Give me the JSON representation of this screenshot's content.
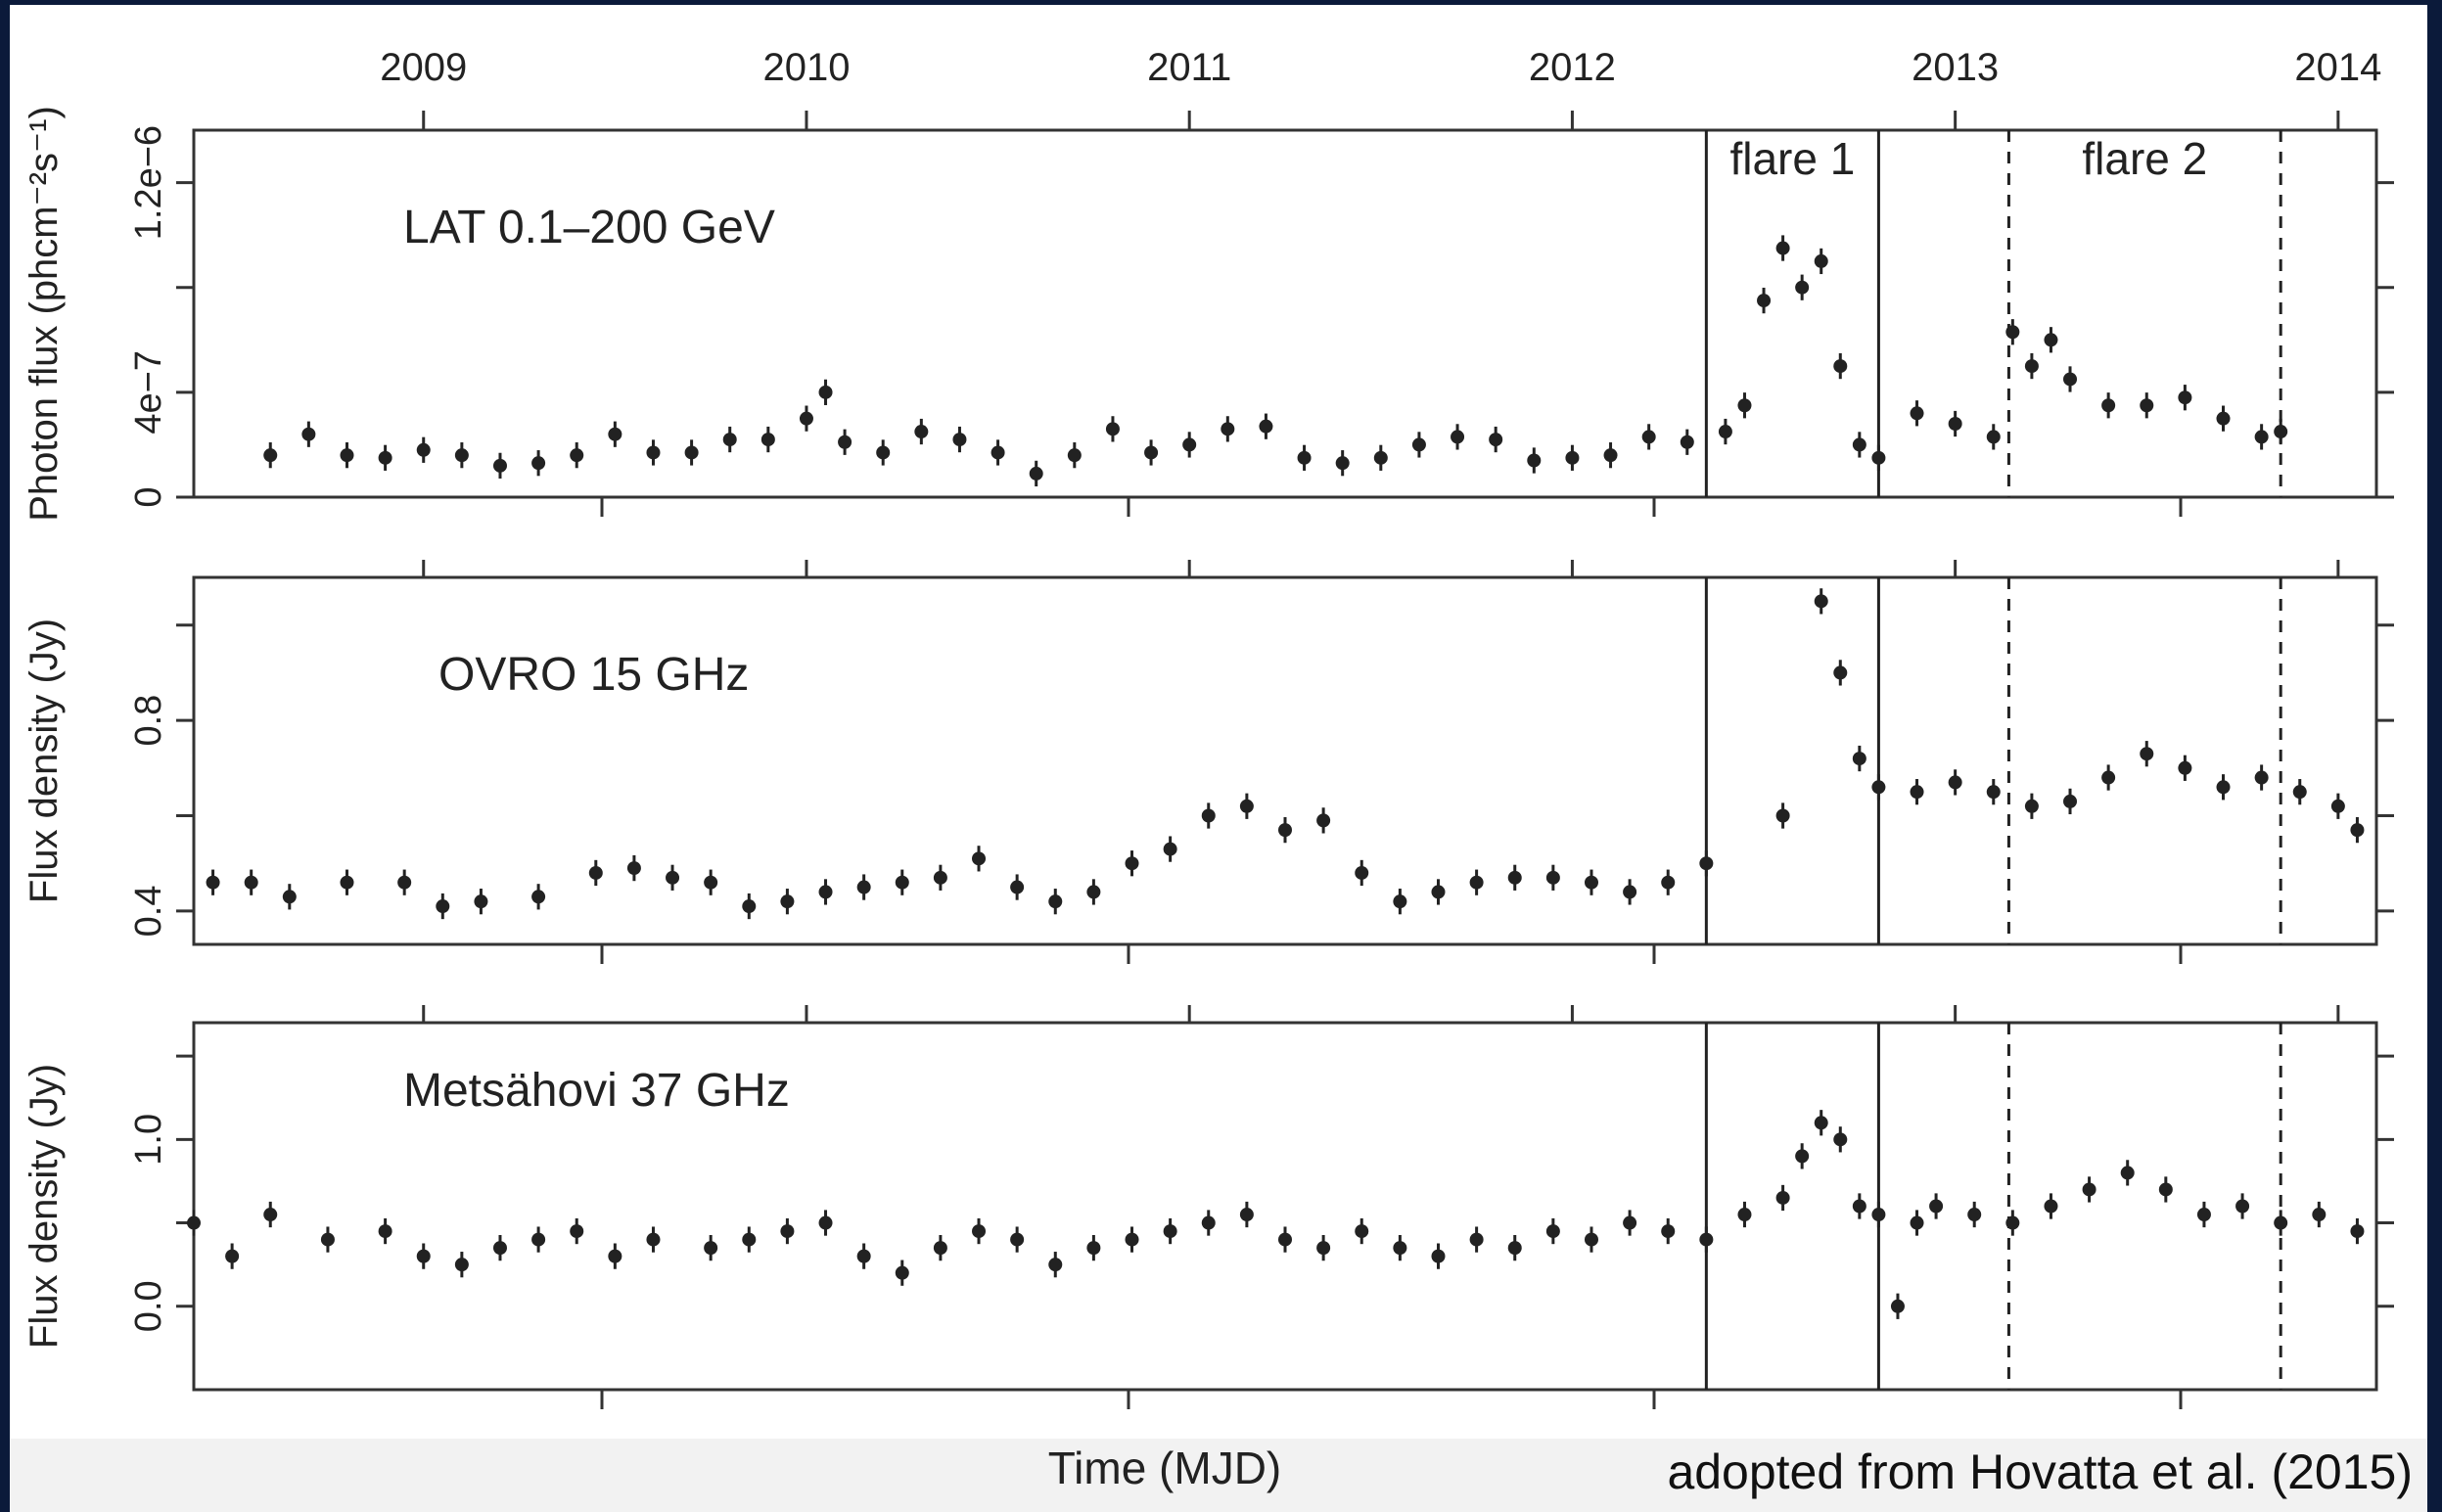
{
  "credit": "adopted from Hovatta et al. (2015)",
  "colors": {
    "ink": "#222222",
    "frame": "#333333",
    "background": "#ffffff"
  },
  "chart_data": {
    "type": "scatter",
    "xlabel": "Time (MJD)",
    "top_axis": {
      "ticks": [
        "2009",
        "2010",
        "2011",
        "2012",
        "2013",
        "2014"
      ]
    },
    "x_range_years": [
      2008.4,
      2014.1
    ],
    "vertical_lines": [
      {
        "year": 2012.35,
        "style": "solid"
      },
      {
        "year": 2012.8,
        "style": "solid"
      },
      {
        "year": 2013.14,
        "style": "dashed"
      },
      {
        "year": 2013.85,
        "style": "dashed"
      }
    ],
    "annotations": [
      {
        "text": "flare 1",
        "panel": 0
      },
      {
        "text": "flare 2",
        "panel": 0
      }
    ],
    "panels": [
      {
        "label": "LAT 0.1–200 GeV",
        "ylabel": "Photon flux (phcm⁻²s⁻¹)",
        "ylim": [
          0,
          1.4e-06
        ],
        "ytick_values": [
          0,
          4e-07,
          8e-07,
          1.2e-06
        ],
        "ytick_labels": [
          "0",
          "4e−7",
          "",
          "1.2e−6"
        ],
        "series": [
          {
            "x": [
              2008.6,
              2008.7,
              2008.8,
              2008.9,
              2009.0,
              2009.1,
              2009.2,
              2009.3,
              2009.4,
              2009.5,
              2009.6,
              2009.7,
              2009.8,
              2009.9,
              2010.0,
              2010.05,
              2010.1,
              2010.2,
              2010.3,
              2010.4,
              2010.5,
              2010.6,
              2010.7,
              2010.8,
              2010.9,
              2011.0,
              2011.1,
              2011.2,
              2011.3,
              2011.4,
              2011.5,
              2011.6,
              2011.7,
              2011.8,
              2011.9,
              2012.0,
              2012.1,
              2012.2,
              2012.3,
              2012.4,
              2012.45,
              2012.5,
              2012.55,
              2012.6,
              2012.65,
              2012.7,
              2012.75,
              2012.8,
              2012.9,
              2013.0,
              2013.1,
              2013.15,
              2013.2,
              2013.25,
              2013.3,
              2013.4,
              2013.5,
              2013.6,
              2013.7,
              2013.8,
              2013.85
            ],
            "y": [
              1.6e-07,
              2.4e-07,
              1.6e-07,
              1.5e-07,
              1.8e-07,
              1.6e-07,
              1.2e-07,
              1.3e-07,
              1.6e-07,
              2.4e-07,
              1.7e-07,
              1.7e-07,
              2.2e-07,
              2.2e-07,
              3e-07,
              4e-07,
              2.1e-07,
              1.7e-07,
              2.5e-07,
              2.2e-07,
              1.7e-07,
              9e-08,
              1.6e-07,
              2.6e-07,
              1.7e-07,
              2e-07,
              2.6e-07,
              2.7e-07,
              1.5e-07,
              1.3e-07,
              1.5e-07,
              2e-07,
              2.3e-07,
              2.2e-07,
              1.4e-07,
              1.5e-07,
              1.6e-07,
              2.3e-07,
              2.1e-07,
              2.5e-07,
              3.5e-07,
              7.5e-07,
              9.5e-07,
              8e-07,
              9e-07,
              5e-07,
              2e-07,
              1.5e-07,
              3.2e-07,
              2.8e-07,
              2.3e-07,
              6.3e-07,
              5e-07,
              6e-07,
              4.5e-07,
              3.5e-07,
              3.5e-07,
              3.8e-07,
              3e-07,
              2.3e-07,
              2.5e-07
            ]
          }
        ]
      },
      {
        "label": "OVRO 15 GHz",
        "ylabel": "Flux density (Jy)",
        "ylim": [
          0.33,
          1.1
        ],
        "ytick_values": [
          0.4,
          0.6,
          0.8,
          1.0
        ],
        "ytick_labels": [
          "0.4",
          "",
          "0.8",
          ""
        ],
        "series": [
          {
            "x": [
              2008.45,
              2008.55,
              2008.65,
              2008.8,
              2008.95,
              2009.05,
              2009.15,
              2009.3,
              2009.45,
              2009.55,
              2009.65,
              2009.75,
              2009.85,
              2009.95,
              2010.05,
              2010.15,
              2010.25,
              2010.35,
              2010.45,
              2010.55,
              2010.65,
              2010.75,
              2010.85,
              2010.95,
              2011.05,
              2011.15,
              2011.25,
              2011.35,
              2011.45,
              2011.55,
              2011.65,
              2011.75,
              2011.85,
              2011.95,
              2012.05,
              2012.15,
              2012.25,
              2012.35,
              2012.55,
              2012.65,
              2012.7,
              2012.75,
              2012.8,
              2012.9,
              2013.0,
              2013.1,
              2013.2,
              2013.3,
              2013.4,
              2013.5,
              2013.6,
              2013.7,
              2013.8,
              2013.9,
              2014.0,
              2014.05
            ],
            "y": [
              0.46,
              0.46,
              0.43,
              0.46,
              0.46,
              0.41,
              0.42,
              0.43,
              0.48,
              0.49,
              0.47,
              0.46,
              0.41,
              0.42,
              0.44,
              0.45,
              0.46,
              0.47,
              0.51,
              0.45,
              0.42,
              0.44,
              0.5,
              0.53,
              0.6,
              0.62,
              0.57,
              0.59,
              0.48,
              0.42,
              0.44,
              0.46,
              0.47,
              0.47,
              0.46,
              0.44,
              0.46,
              0.5,
              0.6,
              1.05,
              0.9,
              0.72,
              0.66,
              0.65,
              0.67,
              0.65,
              0.62,
              0.63,
              0.68,
              0.73,
              0.7,
              0.66,
              0.68,
              0.65,
              0.62,
              0.57
            ]
          }
        ]
      },
      {
        "label": "Metsähovi 37 GHz",
        "ylabel": "Flux density (Jy)",
        "ylim": [
          -0.5,
          1.7
        ],
        "ytick_values": [
          0.0,
          0.5,
          1.0,
          1.5
        ],
        "ytick_labels": [
          "0.0",
          "",
          "1.0",
          ""
        ],
        "series": [
          {
            "x": [
              2008.4,
              2008.5,
              2008.6,
              2008.75,
              2008.9,
              2009.0,
              2009.1,
              2009.2,
              2009.3,
              2009.4,
              2009.5,
              2009.6,
              2009.75,
              2009.85,
              2009.95,
              2010.05,
              2010.15,
              2010.25,
              2010.35,
              2010.45,
              2010.55,
              2010.65,
              2010.75,
              2010.85,
              2010.95,
              2011.05,
              2011.15,
              2011.25,
              2011.35,
              2011.45,
              2011.55,
              2011.65,
              2011.75,
              2011.85,
              2011.95,
              2012.05,
              2012.15,
              2012.25,
              2012.35,
              2012.45,
              2012.55,
              2012.6,
              2012.65,
              2012.7,
              2012.75,
              2012.8,
              2012.85,
              2012.9,
              2012.95,
              2013.05,
              2013.15,
              2013.25,
              2013.35,
              2013.45,
              2013.55,
              2013.65,
              2013.75,
              2013.85,
              2013.95,
              2014.05
            ],
            "y": [
              0.5,
              0.3,
              0.55,
              0.4,
              0.45,
              0.3,
              0.25,
              0.35,
              0.4,
              0.45,
              0.3,
              0.4,
              0.35,
              0.4,
              0.45,
              0.5,
              0.3,
              0.2,
              0.35,
              0.45,
              0.4,
              0.25,
              0.35,
              0.4,
              0.45,
              0.5,
              0.55,
              0.4,
              0.35,
              0.45,
              0.35,
              0.3,
              0.4,
              0.35,
              0.45,
              0.4,
              0.5,
              0.45,
              0.4,
              0.55,
              0.65,
              0.9,
              1.1,
              1.0,
              0.6,
              0.55,
              0.0,
              0.5,
              0.6,
              0.55,
              0.5,
              0.6,
              0.7,
              0.8,
              0.7,
              0.55,
              0.6,
              0.5,
              0.55,
              0.45
            ]
          }
        ]
      }
    ]
  }
}
